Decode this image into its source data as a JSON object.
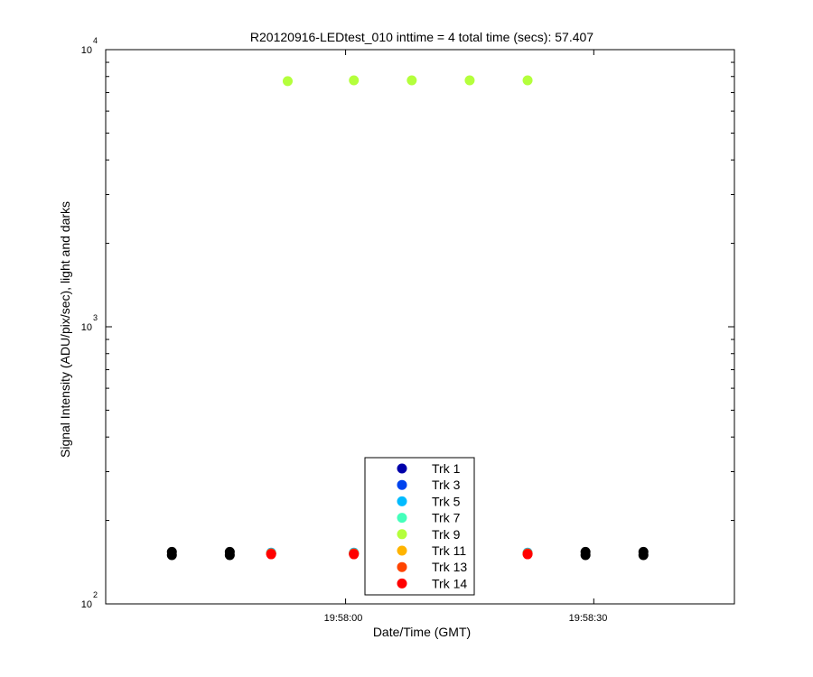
{
  "chart_data": {
    "type": "scatter",
    "title": "R20120916-LEDtest_010 inttime = 4 total time (secs): 57.407",
    "xlabel": "Date/Time (GMT)",
    "ylabel": "Signal Intensity (ADU/pix/sec), light and darks",
    "y_scale": "log",
    "ylim": [
      100,
      10000
    ],
    "xlim": [
      "19:57:31",
      "19:58:47"
    ],
    "x_ticks": [
      "19:58:00",
      "19:58:30"
    ],
    "y_ticks": [
      {
        "base": "10",
        "exp": "2"
      },
      {
        "base": "10",
        "exp": "3"
      },
      {
        "base": "10",
        "exp": "4"
      }
    ],
    "legend_position": "bottom-center",
    "series": [
      {
        "name": "Trk 1",
        "color": "#0000aa",
        "x": [
          "19:57:51",
          "19:58:01",
          "19:58:22"
        ],
        "y": [
          152,
          152,
          152
        ]
      },
      {
        "name": "Trk 3",
        "color": "#0044ee",
        "x": [
          "19:57:51",
          "19:58:01",
          "19:58:22"
        ],
        "y": [
          152,
          152,
          152
        ]
      },
      {
        "name": "Trk 5",
        "color": "#00bbff",
        "x": [
          "19:57:51",
          "19:58:01",
          "19:58:22"
        ],
        "y": [
          153,
          153,
          153
        ]
      },
      {
        "name": "Trk 7",
        "color": "#44ffbb",
        "x": [
          "19:57:51",
          "19:58:01",
          "19:58:22"
        ],
        "y": [
          152,
          152,
          152
        ]
      },
      {
        "name": "Trk 9",
        "color": "#b4ff3c",
        "x": [
          "19:57:53",
          "19:58:01",
          "19:58:08",
          "19:58:15",
          "19:58:22"
        ],
        "y": [
          7700,
          7750,
          7750,
          7750,
          7750
        ]
      },
      {
        "name": "Trk 11",
        "color": "#ffb400",
        "x": [
          "19:57:51",
          "19:58:01",
          "19:58:22"
        ],
        "y": [
          152,
          152,
          152
        ]
      },
      {
        "name": "Trk 13",
        "color": "#ff4400",
        "x": [
          "19:57:51",
          "19:58:01",
          "19:58:22"
        ],
        "y": [
          152,
          152,
          152
        ]
      },
      {
        "name": "Trk 14",
        "color": "#ff0000",
        "x": [
          "19:57:51",
          "19:58:01",
          "19:58:22"
        ],
        "y": [
          151,
          151,
          151
        ]
      },
      {
        "color": "#000000",
        "x": [
          "19:57:39",
          "19:57:39",
          "19:57:46",
          "19:57:46",
          "19:58:29",
          "19:58:29",
          "19:58:36",
          "19:58:36"
        ],
        "y": [
          150,
          154,
          150,
          154,
          150,
          154,
          150,
          154
        ]
      }
    ]
  }
}
